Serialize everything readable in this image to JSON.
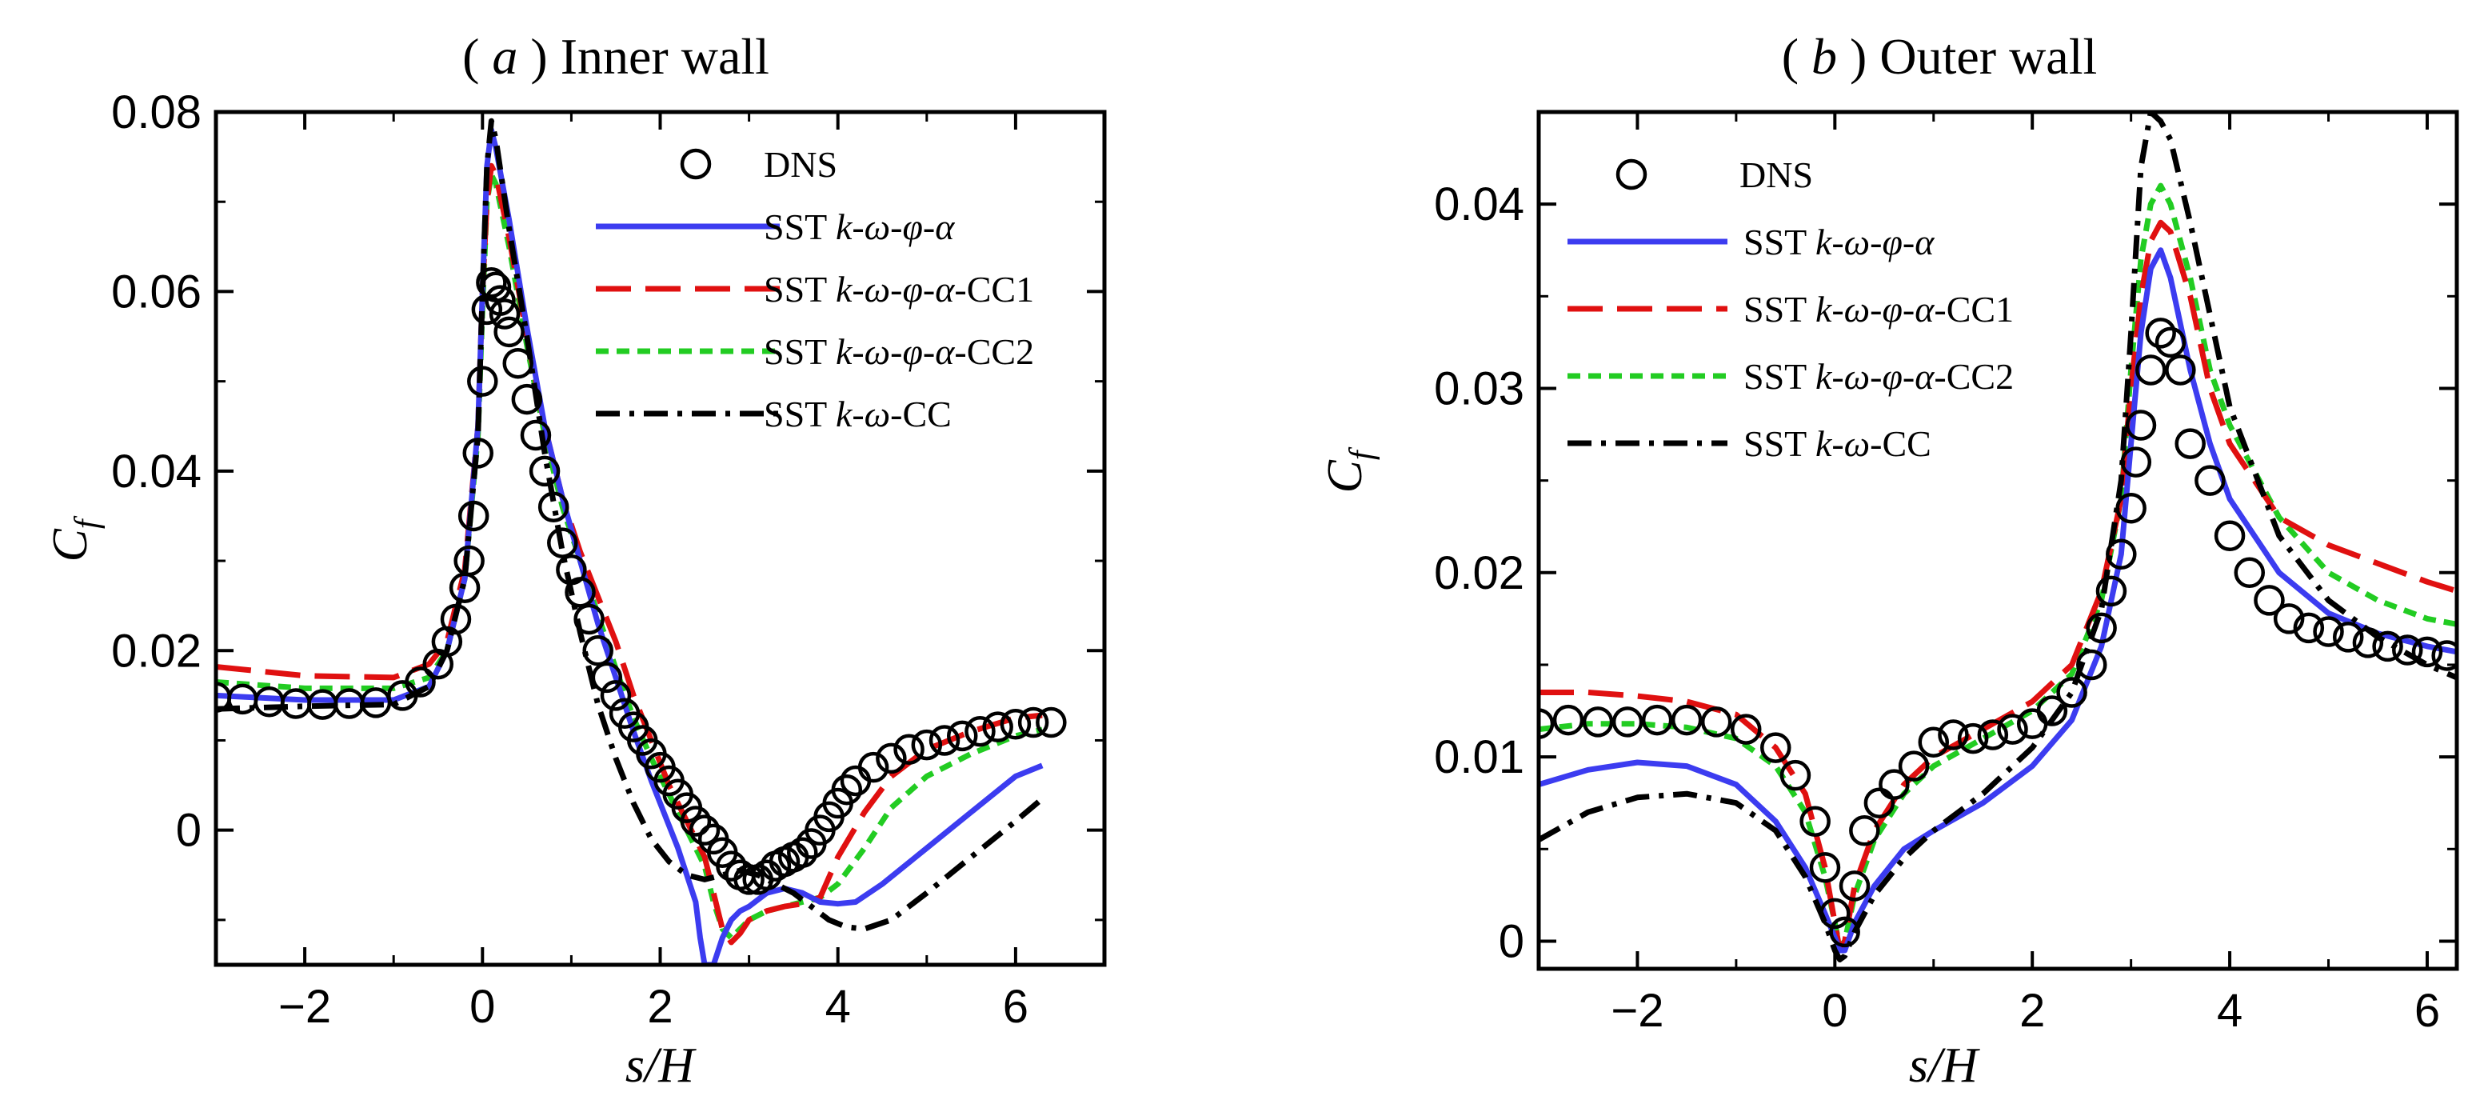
{
  "chart_data": [
    {
      "type": "line",
      "title": {
        "open": "( ",
        "letter": "a",
        "rest": " ) Inner wall"
      },
      "xlabel": "s/H",
      "ylabel": "C",
      "ylabel_sub": "f",
      "xlim": [
        -3,
        7
      ],
      "ylim": [
        -0.015,
        0.08
      ],
      "xticks": [
        -2,
        0,
        2,
        4,
        6
      ],
      "xtick_labels": [
        "−2",
        "0",
        "2",
        "4",
        "6"
      ],
      "yticks": [
        0,
        0.02,
        0.04,
        0.06,
        0.08
      ],
      "ytick_labels": [
        "0",
        "0.02",
        "0.04",
        "0.06",
        "0.08"
      ],
      "legend": [
        {
          "id": "dns",
          "prefix": "DNS",
          "italic": "",
          "suffix": ""
        },
        {
          "id": "sst_a",
          "prefix": "SST ",
          "italic": "k-ω-φ-α",
          "suffix": ""
        },
        {
          "id": "cc1",
          "prefix": "SST ",
          "italic": "k-ω-φ-α",
          "suffix": "-CC1"
        },
        {
          "id": "cc2",
          "prefix": "SST ",
          "italic": "k-ω-φ-α",
          "suffix": "-CC2"
        },
        {
          "id": "cc",
          "prefix": "SST ",
          "italic": "k-ω",
          "suffix": "-CC"
        }
      ],
      "series": [
        {
          "id": "dns",
          "name": "DNS",
          "x": [
            -3.0,
            -2.7,
            -2.4,
            -2.1,
            -1.8,
            -1.5,
            -1.2,
            -0.9,
            -0.7,
            -0.5,
            -0.4,
            -0.3,
            -0.2,
            -0.15,
            -0.1,
            -0.05,
            0.0,
            0.05,
            0.1,
            0.15,
            0.2,
            0.25,
            0.3,
            0.4,
            0.5,
            0.6,
            0.7,
            0.8,
            0.9,
            1.0,
            1.1,
            1.2,
            1.3,
            1.4,
            1.5,
            1.6,
            1.7,
            1.8,
            1.9,
            2.0,
            2.1,
            2.2,
            2.3,
            2.4,
            2.5,
            2.6,
            2.7,
            2.8,
            2.9,
            3.0,
            3.1,
            3.2,
            3.3,
            3.4,
            3.5,
            3.6,
            3.7,
            3.8,
            3.9,
            4.0,
            4.1,
            4.2,
            4.4,
            4.6,
            4.8,
            5.0,
            5.2,
            5.4,
            5.6,
            5.8,
            6.0,
            6.2,
            6.4
          ],
          "y": [
            0.0148,
            0.0146,
            0.0143,
            0.0141,
            0.014,
            0.0141,
            0.0142,
            0.015,
            0.0165,
            0.0185,
            0.021,
            0.0235,
            0.027,
            0.03,
            0.035,
            0.042,
            0.05,
            0.058,
            0.061,
            0.0605,
            0.059,
            0.0575,
            0.0555,
            0.052,
            0.048,
            0.044,
            0.04,
            0.036,
            0.032,
            0.029,
            0.0265,
            0.0235,
            0.02,
            0.017,
            0.015,
            0.013,
            0.0115,
            0.01,
            0.0085,
            0.007,
            0.0055,
            0.004,
            0.0025,
            0.001,
            0.0,
            -0.001,
            -0.0025,
            -0.004,
            -0.005,
            -0.0055,
            -0.0055,
            -0.005,
            -0.004,
            -0.0035,
            -0.003,
            -0.0025,
            -0.0015,
            0.0,
            0.0015,
            0.003,
            0.0045,
            0.0055,
            0.007,
            0.008,
            0.009,
            0.0095,
            0.01,
            0.0105,
            0.011,
            0.0115,
            0.0118,
            0.012,
            0.012
          ]
        },
        {
          "id": "sst_a",
          "name": "SST k-ω-φ-α",
          "color": "#3c3cf0",
          "x": [
            -3.0,
            -2.0,
            -1.0,
            -0.6,
            -0.4,
            -0.2,
            -0.05,
            0.0,
            0.05,
            0.1,
            0.15,
            0.3,
            0.5,
            0.7,
            0.9,
            1.1,
            1.3,
            1.5,
            1.7,
            1.9,
            2.0,
            2.2,
            2.3,
            2.4,
            2.45,
            2.5,
            2.6,
            2.7,
            2.8,
            2.9,
            3.0,
            3.2,
            3.4,
            3.6,
            3.8,
            4.0,
            4.2,
            4.5,
            5.0,
            5.5,
            6.0,
            6.3
          ],
          "y": [
            0.015,
            0.0145,
            0.0145,
            0.016,
            0.02,
            0.028,
            0.045,
            0.06,
            0.074,
            0.078,
            0.076,
            0.068,
            0.056,
            0.045,
            0.037,
            0.03,
            0.023,
            0.017,
            0.011,
            0.0055,
            0.003,
            -0.002,
            -0.005,
            -0.008,
            -0.012,
            -0.015,
            -0.015,
            -0.012,
            -0.01,
            -0.009,
            -0.0085,
            -0.007,
            -0.0065,
            -0.007,
            -0.008,
            -0.0082,
            -0.008,
            -0.006,
            -0.002,
            0.002,
            0.006,
            0.0072
          ]
        },
        {
          "id": "cc1",
          "name": "SST k-ω-φ-α-CC1",
          "color": "#e01010",
          "x": [
            -3.0,
            -2.0,
            -1.0,
            -0.6,
            -0.4,
            -0.2,
            -0.05,
            0.0,
            0.05,
            0.1,
            0.15,
            0.3,
            0.5,
            0.7,
            0.9,
            1.1,
            1.3,
            1.5,
            1.7,
            1.9,
            2.1,
            2.3,
            2.5,
            2.6,
            2.7,
            2.8,
            2.9,
            3.0,
            3.2,
            3.4,
            3.6,
            3.8,
            4.0,
            4.3,
            4.6,
            5.0,
            5.5,
            6.0,
            6.3
          ],
          "y": [
            0.0182,
            0.0172,
            0.017,
            0.0185,
            0.021,
            0.029,
            0.045,
            0.06,
            0.07,
            0.074,
            0.073,
            0.066,
            0.055,
            0.045,
            0.037,
            0.031,
            0.026,
            0.021,
            0.015,
            0.01,
            0.005,
            0.001,
            -0.003,
            -0.007,
            -0.011,
            -0.0125,
            -0.0115,
            -0.01,
            -0.009,
            -0.0085,
            -0.0082,
            -0.0075,
            -0.003,
            0.002,
            0.006,
            0.009,
            0.011,
            0.0125,
            0.0128
          ]
        },
        {
          "id": "cc2",
          "name": "SST k-ω-φ-α-CC2",
          "color": "#22cc22",
          "x": [
            -3.0,
            -2.0,
            -1.0,
            -0.6,
            -0.4,
            -0.2,
            -0.05,
            0.0,
            0.05,
            0.1,
            0.15,
            0.3,
            0.5,
            0.7,
            0.9,
            1.1,
            1.3,
            1.5,
            1.7,
            1.9,
            2.1,
            2.3,
            2.5,
            2.6,
            2.7,
            2.8,
            2.9,
            3.0,
            3.2,
            3.4,
            3.6,
            3.8,
            4.0,
            4.3,
            4.6,
            5.0,
            5.5,
            6.0,
            6.3
          ],
          "y": [
            0.0165,
            0.0158,
            0.0158,
            0.017,
            0.02,
            0.028,
            0.044,
            0.058,
            0.07,
            0.073,
            0.072,
            0.065,
            0.054,
            0.044,
            0.036,
            0.03,
            0.024,
            0.018,
            0.0125,
            0.008,
            0.004,
            0.0,
            -0.004,
            -0.008,
            -0.011,
            -0.012,
            -0.011,
            -0.01,
            -0.009,
            -0.0085,
            -0.008,
            -0.0075,
            -0.006,
            -0.002,
            0.0025,
            0.006,
            0.0085,
            0.0105,
            0.0112
          ]
        },
        {
          "id": "cc",
          "name": "SST k-ω-CC",
          "color": "#000000",
          "x": [
            -3.0,
            -2.0,
            -1.0,
            -0.6,
            -0.4,
            -0.2,
            -0.05,
            0.0,
            0.05,
            0.1,
            0.15,
            0.3,
            0.5,
            0.7,
            0.9,
            1.1,
            1.3,
            1.5,
            1.7,
            1.9,
            2.1,
            2.3,
            2.5,
            2.7,
            2.9,
            3.1,
            3.3,
            3.5,
            3.7,
            3.9,
            4.1,
            4.3,
            4.6,
            5.0,
            5.5,
            6.0,
            6.3
          ],
          "y": [
            0.0135,
            0.0138,
            0.014,
            0.016,
            0.02,
            0.028,
            0.044,
            0.06,
            0.074,
            0.079,
            0.077,
            0.067,
            0.055,
            0.042,
            0.031,
            0.022,
            0.014,
            0.008,
            0.003,
            -0.001,
            -0.0035,
            -0.005,
            -0.0055,
            -0.005,
            -0.0045,
            -0.005,
            -0.006,
            -0.007,
            -0.0085,
            -0.01,
            -0.0108,
            -0.011,
            -0.01,
            -0.007,
            -0.003,
            0.001,
            0.0035
          ]
        }
      ]
    },
    {
      "type": "line",
      "title": {
        "open": "( ",
        "letter": "b",
        "rest": " ) Outer wall"
      },
      "xlabel": "s/H",
      "ylabel": "C",
      "ylabel_sub": "f",
      "xlim": [
        -3,
        6.3
      ],
      "ylim": [
        -0.0015,
        0.045
      ],
      "xticks": [
        -2,
        0,
        2,
        4,
        6
      ],
      "xtick_labels": [
        "−2",
        "0",
        "2",
        "4",
        "6"
      ],
      "yticks": [
        0,
        0.01,
        0.02,
        0.03,
        0.04
      ],
      "ytick_labels": [
        "0",
        "0.01",
        "0.02",
        "0.03",
        "0.04"
      ],
      "legend": [
        {
          "id": "dns",
          "prefix": "DNS",
          "italic": "",
          "suffix": ""
        },
        {
          "id": "sst_a",
          "prefix": "SST ",
          "italic": "k-ω-φ-α",
          "suffix": ""
        },
        {
          "id": "cc1",
          "prefix": "SST ",
          "italic": "k-ω-φ-α",
          "suffix": "-CC1"
        },
        {
          "id": "cc2",
          "prefix": "SST ",
          "italic": "k-ω-φ-α",
          "suffix": "-CC2"
        },
        {
          "id": "cc",
          "prefix": "SST ",
          "italic": "k-ω",
          "suffix": "-CC"
        }
      ],
      "series": [
        {
          "id": "dns",
          "name": "DNS",
          "x": [
            -3.0,
            -2.7,
            -2.4,
            -2.1,
            -1.8,
            -1.5,
            -1.2,
            -0.9,
            -0.6,
            -0.4,
            -0.2,
            -0.1,
            0.0,
            0.1,
            0.2,
            0.3,
            0.45,
            0.6,
            0.8,
            1.0,
            1.2,
            1.4,
            1.6,
            1.8,
            2.0,
            2.2,
            2.4,
            2.6,
            2.7,
            2.8,
            2.9,
            3.0,
            3.05,
            3.1,
            3.2,
            3.3,
            3.4,
            3.5,
            3.6,
            3.8,
            4.0,
            4.2,
            4.4,
            4.6,
            4.8,
            5.0,
            5.2,
            5.4,
            5.6,
            5.8,
            6.0,
            6.2
          ],
          "y": [
            0.0118,
            0.012,
            0.0119,
            0.0119,
            0.012,
            0.012,
            0.0119,
            0.0115,
            0.0105,
            0.009,
            0.0065,
            0.004,
            0.0015,
            0.0005,
            0.003,
            0.006,
            0.0075,
            0.0085,
            0.0095,
            0.0108,
            0.0112,
            0.011,
            0.0112,
            0.0115,
            0.0118,
            0.0125,
            0.0135,
            0.015,
            0.017,
            0.019,
            0.021,
            0.0235,
            0.026,
            0.028,
            0.031,
            0.033,
            0.0325,
            0.031,
            0.027,
            0.025,
            0.022,
            0.02,
            0.0185,
            0.0175,
            0.017,
            0.0168,
            0.0165,
            0.0162,
            0.016,
            0.0158,
            0.0157,
            0.0155
          ]
        },
        {
          "id": "sst_a",
          "name": "SST k-ω-φ-α",
          "color": "#3c3cf0",
          "x": [
            -3.0,
            -2.5,
            -2.0,
            -1.5,
            -1.0,
            -0.6,
            -0.3,
            -0.1,
            0.0,
            0.05,
            0.1,
            0.2,
            0.4,
            0.7,
            1.0,
            1.5,
            2.0,
            2.4,
            2.7,
            2.9,
            3.0,
            3.1,
            3.2,
            3.3,
            3.4,
            3.6,
            3.8,
            4.0,
            4.5,
            5.0,
            5.5,
            6.0,
            6.3
          ],
          "y": [
            0.0085,
            0.0093,
            0.0097,
            0.0095,
            0.0085,
            0.0065,
            0.004,
            0.0015,
            0.0002,
            -0.0005,
            -0.0005,
            0.001,
            0.003,
            0.005,
            0.006,
            0.0075,
            0.0095,
            0.012,
            0.016,
            0.021,
            0.027,
            0.033,
            0.0365,
            0.0375,
            0.036,
            0.031,
            0.027,
            0.024,
            0.02,
            0.0178,
            0.0167,
            0.016,
            0.0157
          ]
        },
        {
          "id": "cc1",
          "name": "SST k-ω-φ-α-CC1",
          "color": "#e01010",
          "x": [
            -3.0,
            -2.5,
            -2.0,
            -1.5,
            -1.0,
            -0.6,
            -0.3,
            -0.1,
            0.0,
            0.05,
            0.1,
            0.2,
            0.4,
            0.7,
            1.0,
            1.5,
            2.0,
            2.4,
            2.7,
            2.9,
            3.0,
            3.1,
            3.2,
            3.3,
            3.4,
            3.6,
            3.8,
            4.0,
            4.5,
            5.0,
            5.5,
            6.0,
            6.3
          ],
          "y": [
            0.0135,
            0.0135,
            0.0133,
            0.013,
            0.0123,
            0.0105,
            0.008,
            0.004,
            0.001,
            -0.0005,
            0.0,
            0.003,
            0.006,
            0.0085,
            0.01,
            0.0115,
            0.013,
            0.015,
            0.019,
            0.024,
            0.03,
            0.035,
            0.038,
            0.039,
            0.0385,
            0.035,
            0.03,
            0.027,
            0.023,
            0.0215,
            0.0205,
            0.0195,
            0.019
          ]
        },
        {
          "id": "cc2",
          "name": "SST k-ω-φ-α-CC2",
          "color": "#22cc22",
          "x": [
            -3.0,
            -2.5,
            -2.0,
            -1.5,
            -1.0,
            -0.6,
            -0.3,
            -0.1,
            0.0,
            0.05,
            0.1,
            0.2,
            0.4,
            0.7,
            1.0,
            1.5,
            2.0,
            2.4,
            2.7,
            2.9,
            3.0,
            3.1,
            3.2,
            3.3,
            3.4,
            3.6,
            3.8,
            4.0,
            4.5,
            5.0,
            5.5,
            6.0,
            6.3
          ],
          "y": [
            0.0115,
            0.0118,
            0.0118,
            0.0116,
            0.011,
            0.0095,
            0.007,
            0.0035,
            0.001,
            -0.0003,
            0.0,
            0.0025,
            0.0055,
            0.008,
            0.0095,
            0.011,
            0.0125,
            0.0145,
            0.0185,
            0.024,
            0.031,
            0.037,
            0.04,
            0.041,
            0.04,
            0.036,
            0.031,
            0.028,
            0.023,
            0.02,
            0.0185,
            0.0175,
            0.0172
          ]
        },
        {
          "id": "cc",
          "name": "SST k-ω-CC",
          "color": "#000000",
          "x": [
            -3.0,
            -2.5,
            -2.0,
            -1.5,
            -1.0,
            -0.6,
            -0.3,
            -0.1,
            0.0,
            0.05,
            0.1,
            0.2,
            0.4,
            0.7,
            1.0,
            1.5,
            2.0,
            2.4,
            2.7,
            2.9,
            3.0,
            3.1,
            3.2,
            3.3,
            3.4,
            3.6,
            3.8,
            4.0,
            4.5,
            5.0,
            5.5,
            6.0,
            6.3
          ],
          "y": [
            0.0055,
            0.007,
            0.0078,
            0.008,
            0.0075,
            0.006,
            0.0035,
            0.001,
            -0.0005,
            -0.001,
            -0.0008,
            0.0005,
            0.0025,
            0.0045,
            0.006,
            0.008,
            0.0105,
            0.0135,
            0.018,
            0.025,
            0.033,
            0.042,
            0.045,
            0.0445,
            0.0435,
            0.039,
            0.034,
            0.029,
            0.022,
            0.0185,
            0.0165,
            0.015,
            0.0143
          ]
        }
      ]
    }
  ]
}
